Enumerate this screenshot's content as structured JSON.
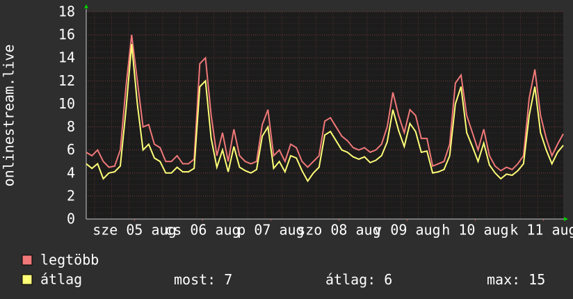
{
  "chart_data": {
    "type": "line",
    "ylabel": "onlinestream.live",
    "x": [
      0,
      2,
      4,
      6,
      8,
      10,
      12,
      14,
      16,
      18,
      20,
      22,
      24,
      26,
      28,
      30,
      32,
      34,
      36,
      38,
      40,
      42,
      44,
      46,
      48,
      50,
      52,
      54,
      56,
      58,
      60,
      62,
      64,
      66,
      68,
      70,
      72,
      74,
      76,
      78,
      80,
      82,
      84,
      86,
      88,
      90,
      92,
      94,
      96,
      98,
      100,
      102,
      104,
      106,
      108,
      110,
      112,
      114,
      116,
      118,
      120,
      122,
      124,
      126,
      128,
      130,
      132,
      134,
      136,
      138,
      140,
      142,
      144,
      146,
      148,
      150,
      152,
      154,
      156,
      158,
      160,
      162,
      164,
      166,
      168
    ],
    "xlim": [
      0,
      168
    ],
    "xticks": [
      {
        "value": 17,
        "label": "sze 05 aug"
      },
      {
        "value": 41,
        "label": "cs 06 aug"
      },
      {
        "value": 65,
        "label": "p 07 aug"
      },
      {
        "value": 89,
        "label": "szo 08 aug"
      },
      {
        "value": 113,
        "label": "v 09 aug"
      },
      {
        "value": 137,
        "label": "h 10 aug"
      },
      {
        "value": 161,
        "label": "k 11 aug"
      }
    ],
    "ylim": [
      0,
      18
    ],
    "yticks": [
      0,
      2,
      4,
      6,
      8,
      10,
      12,
      14,
      16,
      18
    ],
    "grid": true,
    "series": [
      {
        "name": "legtöbb",
        "color": "#f07878",
        "values": [
          5.8,
          5.5,
          6,
          5,
          4.5,
          4.6,
          6,
          11.5,
          16,
          12,
          8,
          8.2,
          6.5,
          6.2,
          5,
          5,
          5.5,
          4.8,
          4.8,
          5.2,
          13.5,
          14,
          9,
          5.5,
          7.5,
          5,
          7.8,
          5.5,
          5,
          4.8,
          5,
          8.2,
          9.5,
          5.5,
          6,
          5,
          6.5,
          6.2,
          5,
          4.5,
          5,
          5.5,
          8.5,
          8.8,
          8,
          7.2,
          6.8,
          6.2,
          6,
          6.2,
          5.8,
          6,
          6.5,
          8,
          11,
          9,
          7.5,
          9.5,
          9,
          7,
          7,
          4.6,
          4.8,
          5,
          6.5,
          11.8,
          12.5,
          9,
          7.5,
          6,
          7.8,
          5.5,
          4.6,
          4.2,
          4.5,
          4.3,
          4.8,
          5.5,
          10.5,
          13,
          9,
          7,
          5.5,
          6.5,
          7.4
        ]
      },
      {
        "name": "átlag",
        "color": "#ffff78",
        "values": [
          4.8,
          4.4,
          4.8,
          3.5,
          4,
          4.1,
          4.6,
          9.5,
          15.2,
          10,
          6,
          6.5,
          5.3,
          5,
          4,
          4,
          4.5,
          4.1,
          4.1,
          4.4,
          11.5,
          12,
          7,
          4.5,
          6,
          4.1,
          6.3,
          4.5,
          4.2,
          4,
          4.3,
          7.2,
          8,
          4.4,
          5,
          4.1,
          5.5,
          5.3,
          4.2,
          3.3,
          4,
          4.5,
          7.3,
          7.6,
          6.8,
          6,
          5.8,
          5.4,
          5.2,
          5.4,
          4.9,
          5.1,
          5.5,
          6.7,
          9.5,
          7.7,
          6.3,
          8.3,
          7.6,
          5.8,
          5.9,
          4,
          4.1,
          4.3,
          5.5,
          10,
          11.5,
          7.5,
          6.3,
          5,
          6.6,
          4.7,
          4,
          3.5,
          3.9,
          3.8,
          4.2,
          4.8,
          9,
          11.5,
          7.5,
          6,
          4.8,
          5.8,
          6.4
        ]
      }
    ],
    "stats": [
      {
        "label": "most:",
        "value": 7
      },
      {
        "label": "átlag:",
        "value": 6
      },
      {
        "label": "max:",
        "value": 15
      }
    ]
  }
}
